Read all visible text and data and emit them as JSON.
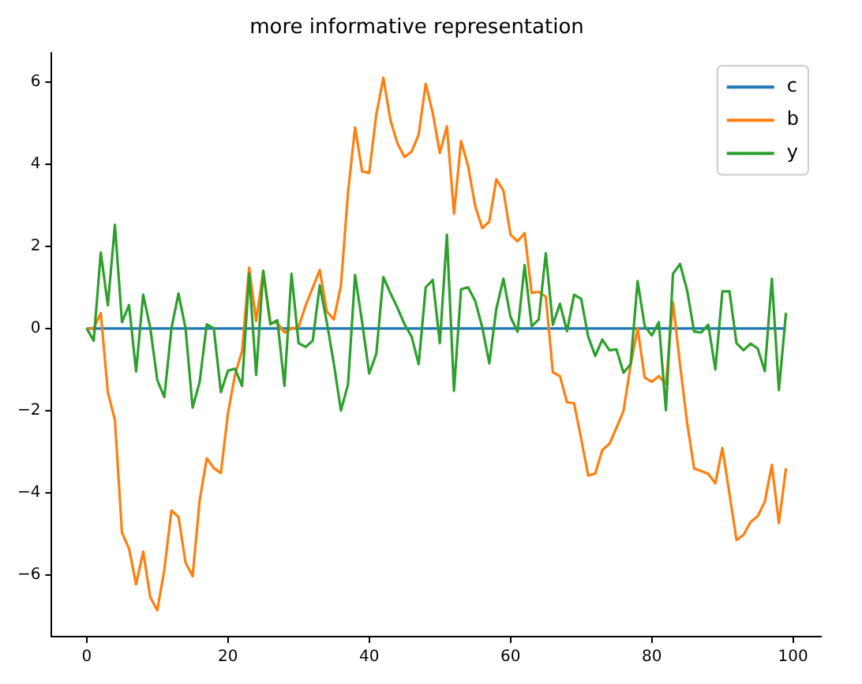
{
  "chart_data": {
    "type": "line",
    "title": "more informative representation",
    "x": [
      0,
      1,
      2,
      3,
      4,
      5,
      6,
      7,
      8,
      9,
      10,
      11,
      12,
      13,
      14,
      15,
      16,
      17,
      18,
      19,
      20,
      21,
      22,
      23,
      24,
      25,
      26,
      27,
      28,
      29,
      30,
      31,
      32,
      33,
      34,
      35,
      36,
      37,
      38,
      39,
      40,
      41,
      42,
      43,
      44,
      45,
      46,
      47,
      48,
      49,
      50,
      51,
      52,
      53,
      54,
      55,
      56,
      57,
      58,
      59,
      60,
      61,
      62,
      63,
      64,
      65,
      66,
      67,
      68,
      69,
      70,
      71,
      72,
      73,
      74,
      75,
      76,
      77,
      78,
      79,
      80,
      81,
      82,
      83,
      84,
      85,
      86,
      87,
      88,
      89,
      90,
      91,
      92,
      93,
      94,
      95,
      96,
      97,
      98,
      99
    ],
    "series": [
      {
        "name": "c",
        "color": "#1f77b4",
        "values": [
          0,
          0,
          0,
          0,
          0,
          0,
          0,
          0,
          0,
          0,
          0,
          0,
          0,
          0,
          0,
          0,
          0,
          0,
          0,
          0,
          0,
          0,
          0,
          0,
          0,
          0,
          0,
          0,
          0,
          0,
          0,
          0,
          0,
          0,
          0,
          0,
          0,
          0,
          0,
          0,
          0,
          0,
          0,
          0,
          0,
          0,
          0,
          0,
          0,
          0,
          0,
          0,
          0,
          0,
          0,
          0,
          0,
          0,
          0,
          0,
          0,
          0,
          0,
          0,
          0,
          0,
          0,
          0,
          0,
          0,
          0,
          0,
          0,
          0,
          0,
          0,
          0,
          0,
          0,
          0,
          0,
          0,
          0,
          0,
          0,
          0,
          0,
          0,
          0,
          0,
          0,
          0,
          0,
          0,
          0,
          0,
          0,
          0,
          0,
          0
        ]
      },
      {
        "name": "b",
        "color": "#ff7f0e",
        "values": [
          0,
          0,
          0.37,
          -1.55,
          -2.23,
          -4.97,
          -5.36,
          -6.23,
          -5.43,
          -6.54,
          -6.86,
          -5.87,
          -4.43,
          -4.59,
          -5.7,
          -6.03,
          -4.18,
          -3.16,
          -3.4,
          -3.52,
          -2.07,
          -1.13,
          -0.55,
          1.48,
          0.18,
          1.4,
          0.15,
          0.13,
          -0.1,
          0,
          0.03,
          0.56,
          0.99,
          1.42,
          0.41,
          0.22,
          1.05,
          3.31,
          4.89,
          3.82,
          3.78,
          5.2,
          6.1,
          5.07,
          4.5,
          4.17,
          4.3,
          4.72,
          5.95,
          5.24,
          4.27,
          4.92,
          2.79,
          4.56,
          3.95,
          2.98,
          2.44,
          2.6,
          3.63,
          3.35,
          2.28,
          2.12,
          2.32,
          0.86,
          0.89,
          0.77,
          -1.07,
          -1.16,
          -1.8,
          -1.82,
          -2.68,
          -3.58,
          -3.53,
          -2.96,
          -2.81,
          -2.42,
          -2.01,
          -0.9,
          0,
          -1.2,
          -1.3,
          -1.16,
          -1.36,
          0.64,
          -0.88,
          -2.29,
          -3.41,
          -3.47,
          -3.54,
          -3.77,
          -2.91,
          -4.03,
          -5.15,
          -5.02,
          -4.71,
          -4.57,
          -4.22,
          -3.32,
          -4.74,
          -3.4
        ]
      },
      {
        "name": "y",
        "color": "#2ca02c",
        "values": [
          0,
          -0.3,
          1.85,
          0.56,
          2.52,
          0.15,
          0.57,
          -1.05,
          0.82,
          0.02,
          -1.26,
          -1.67,
          0,
          0.85,
          0,
          -1.93,
          -1.3,
          0.1,
          0,
          -1.55,
          -1.03,
          -0.98,
          -1.4,
          1.33,
          -1.13,
          1.4,
          0.1,
          0.2,
          -1.4,
          1.33,
          -0.36,
          -0.45,
          -0.3,
          1.05,
          0.15,
          -0.87,
          -2,
          -1.36,
          1.3,
          0.15,
          -1.1,
          -0.62,
          1.25,
          0.86,
          0.5,
          0.1,
          -0.2,
          -0.87,
          1,
          1.18,
          -0.36,
          2.28,
          -1.52,
          0.95,
          1,
          0.67,
          0.03,
          -0.85,
          0.48,
          1.21,
          0.28,
          -0.08,
          1.54,
          0.05,
          0.22,
          1.83,
          0.09,
          0.6,
          -0.07,
          0.82,
          0.72,
          -0.2,
          -0.67,
          -0.27,
          -0.53,
          -0.51,
          -1.08,
          -0.87,
          1.15,
          0.06,
          -0.17,
          0.15,
          -1.99,
          1.33,
          1.57,
          0.93,
          -0.08,
          -0.1,
          0.09,
          -1,
          0.9,
          0.9,
          -0.36,
          -0.53,
          -0.37,
          -0.49,
          -1.04,
          1.21,
          -1.5,
          0.38
        ]
      }
    ],
    "xlim": [
      -4.95,
      103.95
    ],
    "ylim": [
      -7.5,
      6.7
    ],
    "xticks": [
      0,
      20,
      40,
      60,
      80,
      100
    ],
    "yticks": [
      -6,
      -4,
      -2,
      0,
      2,
      4,
      6
    ],
    "legend": "top right",
    "grid": false
  }
}
